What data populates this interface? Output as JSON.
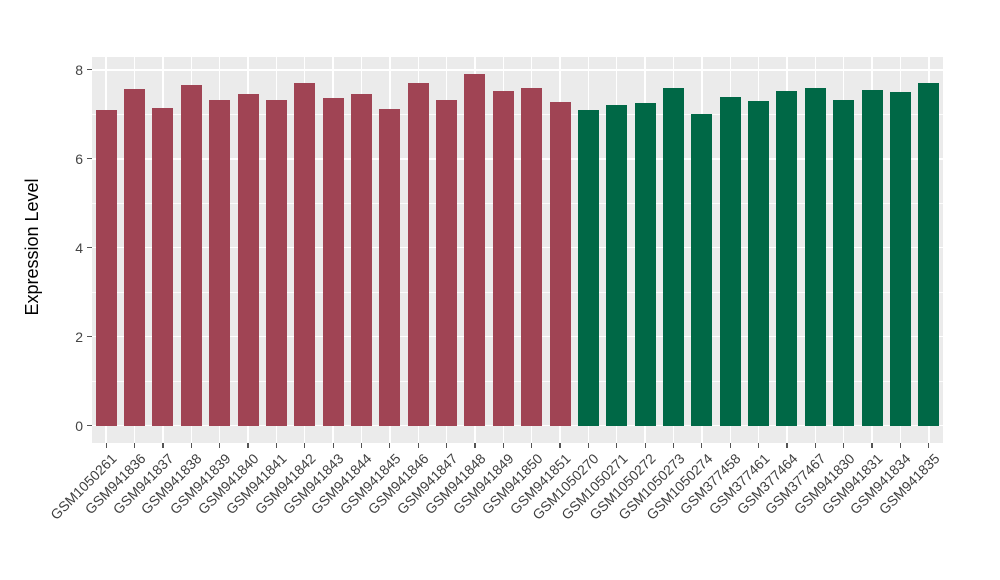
{
  "figure": {
    "background": "#FFFFFF",
    "panel_background": "#EBEBEB",
    "grid_color": "#FFFFFF",
    "tick_mark_color": "#555555",
    "axis_text_color": "#404040",
    "axis_title_color": "#000000"
  },
  "chart_data": {
    "type": "bar",
    "title": "",
    "xlabel": "",
    "ylabel": "Expression Level",
    "ylim": [
      -0.39,
      8.29
    ],
    "yticks": [
      0,
      2,
      4,
      6,
      8
    ],
    "yticks_minor": [
      1,
      3,
      5,
      7
    ],
    "grid": true,
    "legend_position": "none",
    "x_label_rotation_deg": 45,
    "series": [
      {
        "name": "group1",
        "color": "#A04454",
        "categories": [
          "GSM1050261",
          "GSM941836",
          "GSM941837",
          "GSM941838",
          "GSM941839",
          "GSM941840",
          "GSM941841",
          "GSM941842",
          "GSM941843",
          "GSM941844",
          "GSM941845",
          "GSM941846",
          "GSM941847",
          "GSM941848",
          "GSM941849",
          "GSM941850",
          "GSM941851"
        ],
        "values": [
          7.1,
          7.56,
          7.15,
          7.67,
          7.33,
          7.45,
          7.33,
          7.71,
          7.36,
          7.45,
          7.12,
          7.71,
          7.33,
          7.91,
          7.53,
          7.6,
          7.27
        ]
      },
      {
        "name": "group2",
        "color": "#006846",
        "categories": [
          "GSM1050270",
          "GSM1050271",
          "GSM1050272",
          "GSM1050273",
          "GSM1050274",
          "GSM377458",
          "GSM377461",
          "GSM377464",
          "GSM377467",
          "GSM941830",
          "GSM941831",
          "GSM941834",
          "GSM941835"
        ],
        "values": [
          7.1,
          7.21,
          7.25,
          7.59,
          7.01,
          7.39,
          7.3,
          7.53,
          7.59,
          7.33,
          7.54,
          7.51,
          7.7
        ]
      }
    ]
  }
}
